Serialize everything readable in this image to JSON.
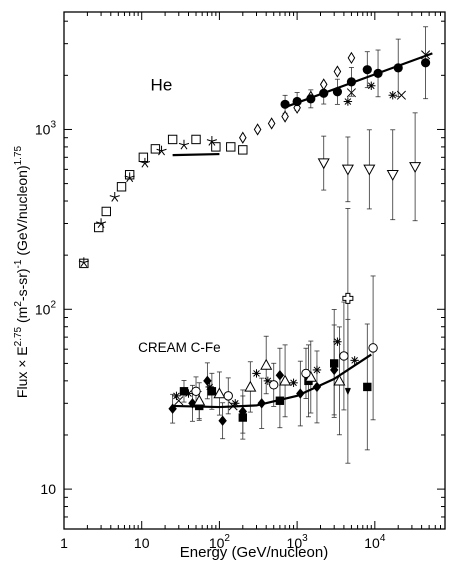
{
  "chart_data": {
    "type": "scatter",
    "xlabel": "Energy (GeV/nucleon)",
    "ylabel": "Flux × E^2.75 (m²-s-sr)^-1 (GeV/nucleon)^1.75",
    "xscale": "log",
    "yscale": "log",
    "xlim": [
      1,
      80000
    ],
    "ylim": [
      6,
      4500
    ],
    "grid": false,
    "legend": "none",
    "x_ticks": [
      {
        "value": 1,
        "base": "1",
        "exp": ""
      },
      {
        "value": 10,
        "base": "10",
        "exp": ""
      },
      {
        "value": 100,
        "base": "10",
        "exp": "2"
      },
      {
        "value": 1000,
        "base": "10",
        "exp": "3"
      },
      {
        "value": 10000,
        "base": "10",
        "exp": "4"
      }
    ],
    "y_ticks": [
      {
        "value": 10,
        "base": "10",
        "exp": ""
      },
      {
        "value": 100,
        "base": "10",
        "exp": "2"
      },
      {
        "value": 1000,
        "base": "10",
        "exp": "3"
      }
    ],
    "annotations": [
      {
        "text": "He",
        "x": 13,
        "y": 1650
      },
      {
        "text": "CREAM C-Fe",
        "x": 9,
        "y": 58
      }
    ],
    "series": [
      {
        "marker": "open-square",
        "points": [
          {
            "x": 1.8,
            "y": 180
          },
          {
            "x": 2.8,
            "y": 285
          },
          {
            "x": 3.5,
            "y": 350
          },
          {
            "x": 5.5,
            "y": 480
          },
          {
            "x": 7,
            "y": 560
          },
          {
            "x": 10.5,
            "y": 700
          },
          {
            "x": 15,
            "y": 780
          },
          {
            "x": 25,
            "y": 880
          },
          {
            "x": 50,
            "y": 880
          },
          {
            "x": 90,
            "y": 800
          },
          {
            "x": 140,
            "y": 800
          },
          {
            "x": 200,
            "y": 770
          }
        ]
      },
      {
        "marker": "star",
        "points": [
          {
            "x": 1.8,
            "y": 182
          },
          {
            "x": 3,
            "y": 300
          },
          {
            "x": 4.5,
            "y": 420
          },
          {
            "x": 7,
            "y": 540
          },
          {
            "x": 11,
            "y": 650
          },
          {
            "x": 18,
            "y": 760
          },
          {
            "x": 35,
            "y": 820
          },
          {
            "x": 80,
            "y": 860
          }
        ]
      },
      {
        "marker": "open-diamond",
        "points": [
          {
            "x": 200,
            "y": 900
          },
          {
            "x": 310,
            "y": 1000
          },
          {
            "x": 470,
            "y": 1080
          },
          {
            "x": 700,
            "y": 1180
          },
          {
            "x": 1000,
            "y": 1320
          },
          {
            "x": 1500,
            "y": 1520
          },
          {
            "x": 2200,
            "y": 1780
          },
          {
            "x": 3300,
            "y": 2100
          },
          {
            "x": 5000,
            "y": 2500
          }
        ]
      },
      {
        "marker": "filled-circle",
        "error": [
          0.05,
          0.05,
          0.05,
          0.06,
          0.07,
          0.08,
          0.1,
          0.13,
          0.16,
          0.2
        ],
        "points": [
          {
            "x": 700,
            "y": 1380
          },
          {
            "x": 1000,
            "y": 1430
          },
          {
            "x": 1500,
            "y": 1480
          },
          {
            "x": 2200,
            "y": 1590
          },
          {
            "x": 3300,
            "y": 1620
          },
          {
            "x": 5000,
            "y": 1840
          },
          {
            "x": 8000,
            "y": 2150
          },
          {
            "x": 11000,
            "y": 2050
          },
          {
            "x": 20000,
            "y": 2200
          },
          {
            "x": 45000,
            "y": 2350
          }
        ]
      },
      {
        "marker": "open-triangle-down",
        "error": [
          0.15,
          0.18,
          0.22,
          0.25,
          0.3
        ],
        "points": [
          {
            "x": 2200,
            "y": 650
          },
          {
            "x": 4500,
            "y": 600
          },
          {
            "x": 8500,
            "y": 600
          },
          {
            "x": 17000,
            "y": 560
          },
          {
            "x": 33000,
            "y": 620
          }
        ]
      },
      {
        "marker": "asterisk",
        "points": [
          {
            "x": 4500,
            "y": 1430
          },
          {
            "x": 9000,
            "y": 1750
          },
          {
            "x": 17000,
            "y": 1550
          },
          {
            "x": 28,
            "y": 33
          },
          {
            "x": 40,
            "y": 34
          },
          {
            "x": 75,
            "y": 37
          },
          {
            "x": 160,
            "y": 30
          },
          {
            "x": 300,
            "y": 44
          },
          {
            "x": 420,
            "y": 40
          },
          {
            "x": 900,
            "y": 39
          },
          {
            "x": 1800,
            "y": 46
          },
          {
            "x": 3300,
            "y": 66
          },
          {
            "x": 5500,
            "y": 52
          }
        ]
      },
      {
        "marker": "cross",
        "points": [
          {
            "x": 5000,
            "y": 1600
          },
          {
            "x": 22000,
            "y": 1550
          },
          {
            "x": 45000,
            "y": 2600
          },
          {
            "x": 30,
            "y": 31
          },
          {
            "x": 150,
            "y": 29
          }
        ]
      },
      {
        "marker": "filled-diamond",
        "error": [
          0.08,
          0.1,
          0.1,
          0.1,
          0.12,
          0.14,
          0.15,
          0.18,
          0.2,
          0.25
        ],
        "points": [
          {
            "x": 25,
            "y": 28
          },
          {
            "x": 45,
            "y": 30
          },
          {
            "x": 70,
            "y": 40
          },
          {
            "x": 110,
            "y": 24
          },
          {
            "x": 200,
            "y": 27
          },
          {
            "x": 350,
            "y": 30
          },
          {
            "x": 600,
            "y": 43
          },
          {
            "x": 1100,
            "y": 34
          },
          {
            "x": 1800,
            "y": 37
          },
          {
            "x": 3000,
            "y": 46
          }
        ]
      },
      {
        "marker": "filled-square",
        "error": [
          0.06,
          0.08,
          0.1,
          0.12,
          0.15,
          0.2,
          0.3,
          0.35
        ],
        "points": [
          {
            "x": 35,
            "y": 35
          },
          {
            "x": 55,
            "y": 29
          },
          {
            "x": 80,
            "y": 35
          },
          {
            "x": 200,
            "y": 25
          },
          {
            "x": 600,
            "y": 31
          },
          {
            "x": 1400,
            "y": 40
          },
          {
            "x": 3000,
            "y": 50
          },
          {
            "x": 8000,
            "y": 37
          }
        ]
      },
      {
        "marker": "open-triangle-up",
        "error": [
          0.1,
          0.12,
          0.14,
          0.16,
          0.2,
          0.2,
          0.3
        ],
        "points": [
          {
            "x": 55,
            "y": 31
          },
          {
            "x": 100,
            "y": 34
          },
          {
            "x": 250,
            "y": 37
          },
          {
            "x": 400,
            "y": 49
          },
          {
            "x": 700,
            "y": 40
          },
          {
            "x": 1500,
            "y": 42
          },
          {
            "x": 3500,
            "y": 40
          }
        ]
      },
      {
        "marker": "open-circle",
        "error": [
          0.08,
          0.1,
          0.12,
          0.14,
          0.3,
          0.4
        ],
        "points": [
          {
            "x": 50,
            "y": 35
          },
          {
            "x": 130,
            "y": 33
          },
          {
            "x": 500,
            "y": 38
          },
          {
            "x": 1300,
            "y": 44
          },
          {
            "x": 4000,
            "y": 55
          },
          {
            "x": 9500,
            "y": 61
          }
        ]
      },
      {
        "marker": "open-cross",
        "error": [
          0.5
        ],
        "points": [
          {
            "x": 4500,
            "y": 115
          }
        ]
      },
      {
        "marker": "filled-triangle-down",
        "error": [
          0.4
        ],
        "points": [
          {
            "x": 4500,
            "y": 35
          }
        ]
      }
    ],
    "fits": [
      {
        "x": [
          25,
          100
        ],
        "y": [
          720,
          730
        ]
      },
      {
        "x": [
          700,
          55000
        ],
        "y": [
          1330,
          2650
        ]
      },
      {
        "x": [
          25,
          100,
          300,
          1000,
          3000,
          9000
        ],
        "y": [
          29,
          28.6,
          29.2,
          33,
          41,
          56
        ]
      }
    ]
  }
}
